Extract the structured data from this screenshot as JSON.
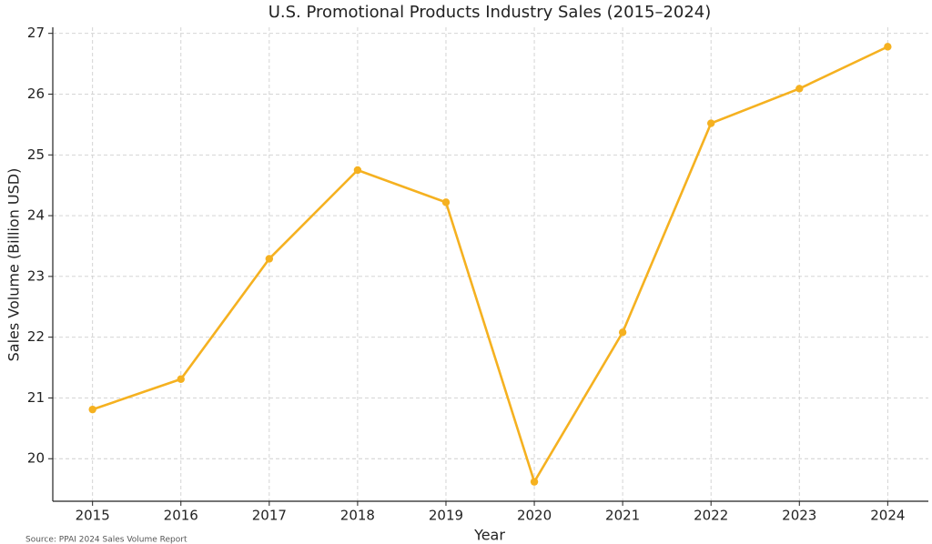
{
  "chart_data": {
    "type": "line",
    "title": "U.S. Promotional Products Industry Sales (2015–2024)",
    "x_label": "Year",
    "y_label": "Sales Volume (Billion USD)",
    "source": "Source: PPAI 2024 Sales Volume Report",
    "x": [
      2015,
      2016,
      2017,
      2018,
      2019,
      2020,
      2021,
      2022,
      2023,
      2024
    ],
    "series": [
      {
        "name": "Sales Volume",
        "color": "#f5b120",
        "values": [
          20.81,
          21.31,
          23.29,
          24.75,
          24.22,
          19.62,
          22.08,
          25.52,
          26.09,
          26.78
        ]
      }
    ],
    "xlim": [
      2014.55,
      2024.46
    ],
    "xticks": [
      2015,
      2016,
      2017,
      2018,
      2019,
      2020,
      2021,
      2022,
      2023,
      2024
    ],
    "ylim": [
      19.3,
      27.1
    ],
    "yticks": [
      20,
      21,
      22,
      23,
      24,
      25,
      26,
      27
    ],
    "grid": true
  }
}
